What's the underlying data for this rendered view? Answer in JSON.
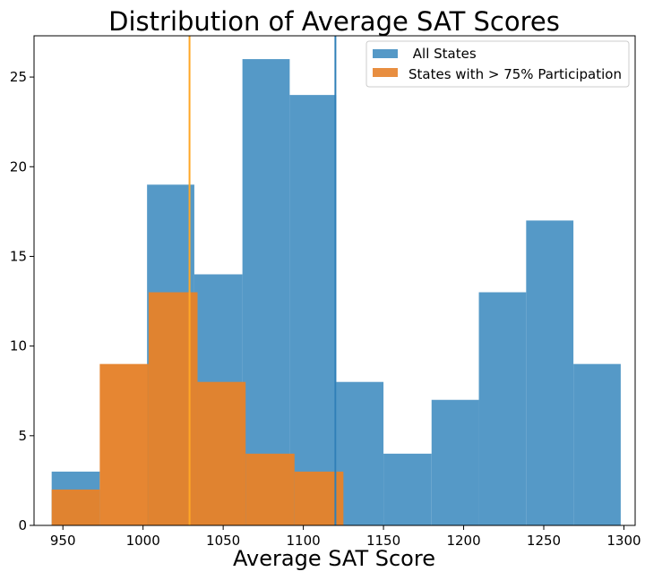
{
  "chart_data": {
    "type": "bar",
    "title": "Distribution of Average SAT Scores",
    "xlabel": "Average SAT Score",
    "ylabel": "",
    "xlim": [
      932,
      1307
    ],
    "ylim": [
      0,
      27.3
    ],
    "xticks": [
      950,
      1000,
      1050,
      1100,
      1150,
      1200,
      1250,
      1300
    ],
    "yticks": [
      0,
      5,
      10,
      15,
      20,
      25
    ],
    "grid": false,
    "legend_position": "top-right",
    "series": [
      {
        "name": " All States",
        "color": "#5599c7",
        "bin_edges": [
          943,
          973,
          1002.5,
          1032,
          1062,
          1091.5,
          1120.5,
          1150,
          1180,
          1209.5,
          1239,
          1268.5,
          1298
        ],
        "values": [
          3,
          0,
          19,
          14,
          26,
          24,
          8,
          4,
          7,
          13,
          17,
          9
        ]
      },
      {
        "name": "States with > 75% Participation",
        "color": "#e5822b",
        "bin_edges": [
          943,
          973,
          1003.5,
          1034,
          1064,
          1094.5,
          1125
        ],
        "values": [
          2,
          9,
          13,
          8,
          4,
          3
        ]
      }
    ],
    "vlines": [
      {
        "x": 1029,
        "color": "#ffa726"
      },
      {
        "x": 1120,
        "color": "#2f7fb7"
      }
    ]
  }
}
